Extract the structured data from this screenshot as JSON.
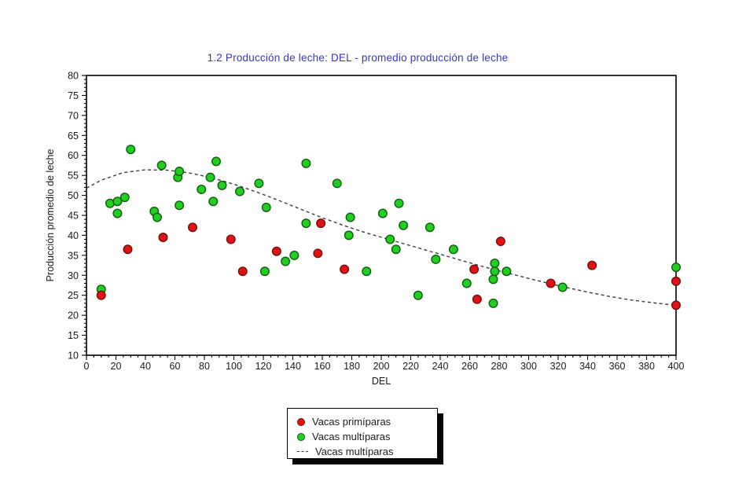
{
  "chart_data": {
    "type": "scatter",
    "title": "1.2 Producción de leche: DEL - promedio producción de leche",
    "xlabel": "DEL",
    "ylabel": "Producción promedio de leche",
    "xlim": [
      0,
      400
    ],
    "ylim": [
      10,
      80
    ],
    "x_ticks": [
      0,
      20,
      40,
      60,
      80,
      100,
      120,
      140,
      160,
      180,
      200,
      220,
      240,
      260,
      280,
      300,
      320,
      340,
      360,
      380,
      400
    ],
    "x_minor_step": 5,
    "y_ticks": [
      10,
      15,
      20,
      25,
      30,
      35,
      40,
      45,
      50,
      55,
      60,
      65,
      70,
      75,
      80
    ],
    "y_minor_step": 1,
    "grid": false,
    "legend_position": "bottom-center",
    "colors": {
      "title": "#3636cd",
      "axis": "#000000",
      "tick_label": "#1a1a1a",
      "primiparas_fill": "#e11212",
      "primiparas_edge": "#70100e",
      "multiparas_fill": "#22ce22",
      "multiparas_edge": "#0d5e0d",
      "trend_line": "#3c3c3c"
    },
    "series": [
      {
        "name": "Vacas primíparas",
        "kind": "scatter",
        "points": [
          [
            10,
            25
          ],
          [
            28,
            36.5
          ],
          [
            52,
            39.5
          ],
          [
            72,
            42
          ],
          [
            98,
            39
          ],
          [
            106,
            31
          ],
          [
            129,
            36
          ],
          [
            157,
            35.5
          ],
          [
            159,
            43
          ],
          [
            175,
            31.5
          ],
          [
            263,
            31.5
          ],
          [
            265,
            24
          ],
          [
            281,
            38.5
          ],
          [
            315,
            28
          ],
          [
            343,
            32.5
          ],
          [
            400,
            28.5
          ],
          [
            400,
            22.5
          ]
        ]
      },
      {
        "name": "Vacas multíparas",
        "kind": "scatter",
        "points": [
          [
            10,
            26.5
          ],
          [
            16,
            48
          ],
          [
            21,
            48.5
          ],
          [
            21,
            45.5
          ],
          [
            26,
            49.5
          ],
          [
            30,
            61.5
          ],
          [
            46,
            46
          ],
          [
            48,
            44.5
          ],
          [
            51,
            57.5
          ],
          [
            62,
            54.5
          ],
          [
            63,
            56
          ],
          [
            63,
            47.5
          ],
          [
            78,
            51.5
          ],
          [
            84,
            54.5
          ],
          [
            86,
            48.5
          ],
          [
            88,
            58.5
          ],
          [
            92,
            52.5
          ],
          [
            104,
            51
          ],
          [
            117,
            53
          ],
          [
            121,
            31
          ],
          [
            122,
            47
          ],
          [
            135,
            33.5
          ],
          [
            141,
            35
          ],
          [
            149,
            58
          ],
          [
            149,
            43
          ],
          [
            170,
            53
          ],
          [
            178,
            40
          ],
          [
            179,
            44.5
          ],
          [
            190,
            31
          ],
          [
            201,
            45.5
          ],
          [
            206,
            39
          ],
          [
            210,
            36.5
          ],
          [
            212,
            48
          ],
          [
            215,
            42.5
          ],
          [
            225,
            25
          ],
          [
            233,
            42
          ],
          [
            237,
            34
          ],
          [
            249,
            36.5
          ],
          [
            258,
            28
          ],
          [
            276,
            29
          ],
          [
            276,
            23
          ],
          [
            277,
            33
          ],
          [
            277,
            31
          ],
          [
            285,
            31
          ],
          [
            323,
            27
          ],
          [
            400,
            32
          ]
        ]
      },
      {
        "name": "Vacas multíparas",
        "kind": "dashed-line",
        "points": [
          [
            0,
            51.8
          ],
          [
            10,
            53.8
          ],
          [
            25,
            55.7
          ],
          [
            40,
            56.4
          ],
          [
            55,
            56.3
          ],
          [
            70,
            55.6
          ],
          [
            85,
            54.4
          ],
          [
            100,
            52.8
          ],
          [
            115,
            50.9
          ],
          [
            130,
            48.8
          ],
          [
            145,
            46.6
          ],
          [
            160,
            44.4
          ],
          [
            175,
            42.4
          ],
          [
            190,
            40.6
          ],
          [
            205,
            39.0
          ],
          [
            220,
            37.4
          ],
          [
            235,
            35.8
          ],
          [
            250,
            34.2
          ],
          [
            265,
            32.6
          ],
          [
            280,
            31.1
          ],
          [
            295,
            29.7
          ],
          [
            310,
            28.3
          ],
          [
            325,
            27.0
          ],
          [
            340,
            25.8
          ],
          [
            355,
            24.7
          ],
          [
            370,
            23.8
          ],
          [
            385,
            23.1
          ],
          [
            400,
            22.5
          ]
        ]
      }
    ]
  }
}
